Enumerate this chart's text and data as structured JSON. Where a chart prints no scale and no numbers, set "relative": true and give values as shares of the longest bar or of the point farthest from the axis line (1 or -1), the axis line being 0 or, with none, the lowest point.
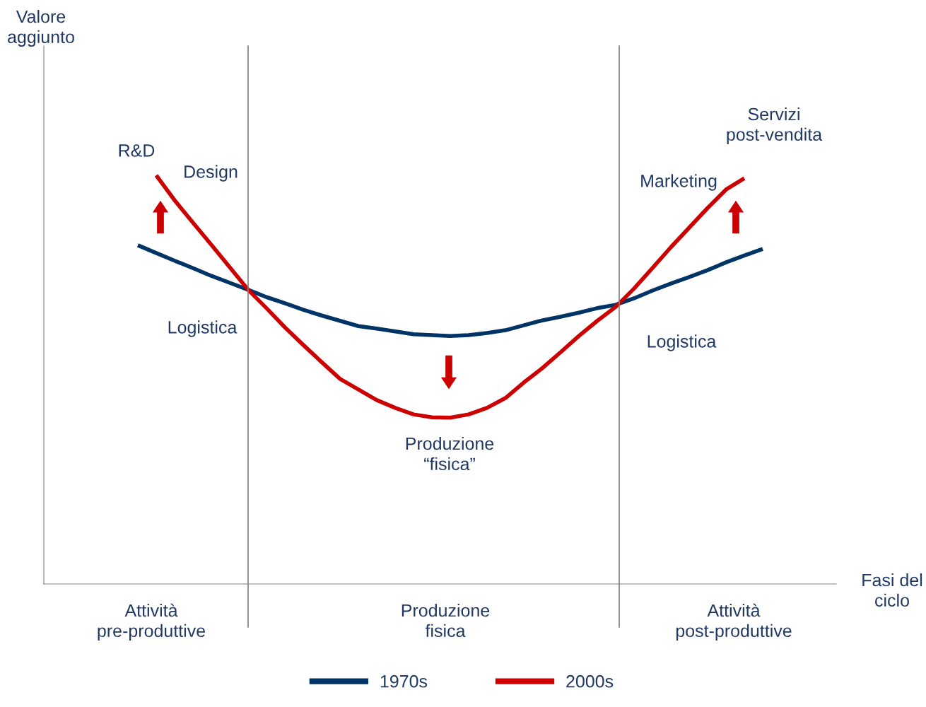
{
  "chart_data": {
    "type": "line",
    "relative": true,
    "categories": [
      null,
      null,
      null,
      null,
      null,
      null,
      null,
      null,
      null,
      null,
      null,
      null,
      null,
      null,
      null,
      null,
      null,
      null,
      null,
      null,
      null,
      null,
      null,
      null,
      null,
      null,
      null,
      null,
      null,
      null,
      null,
      null,
      null,
      null,
      null
    ],
    "legend": "bottom",
    "marker": "none",
    "line_style": "solid",
    "series": [
      {
        "name": "1970s",
        "color": "#003366",
        "values": [
          0.829,
          0.81,
          0.791,
          0.773,
          0.754,
          0.737,
          0.72,
          0.702,
          0.687,
          0.671,
          0.657,
          0.644,
          0.631,
          0.625,
          0.618,
          0.611,
          0.609,
          0.607,
          0.609,
          0.614,
          0.621,
          0.633,
          0.645,
          0.654,
          0.664,
          0.675,
          0.683,
          0.699,
          0.718,
          0.735,
          0.751,
          0.768,
          0.787,
          0.804,
          0.82
        ]
      },
      {
        "name": "2000s",
        "color": "#cc0000",
        "values": [
          null,
          1.0,
          0.939,
          0.884,
          0.83,
          0.775,
          0.72,
          0.675,
          0.628,
          0.585,
          0.543,
          0.502,
          0.476,
          0.45,
          0.431,
          0.415,
          0.408,
          0.407,
          0.415,
          0.431,
          0.455,
          0.493,
          0.528,
          0.567,
          0.607,
          0.644,
          0.678,
          0.723,
          0.773,
          0.824,
          0.872,
          0.92,
          0.965,
          0.993,
          null
        ]
      }
    ],
    "annotations": [
      "Valore\naggiunto",
      "Fasi del\nciclo",
      "R&D",
      "Design",
      "Logistica",
      "Produzione\n“fisica”",
      "Marketing",
      "Servizi\npost-vendita",
      "Logistica",
      "Attività\npre-produttive",
      "Produzione\nfisica",
      "Attività\npost-produttive"
    ]
  }
}
